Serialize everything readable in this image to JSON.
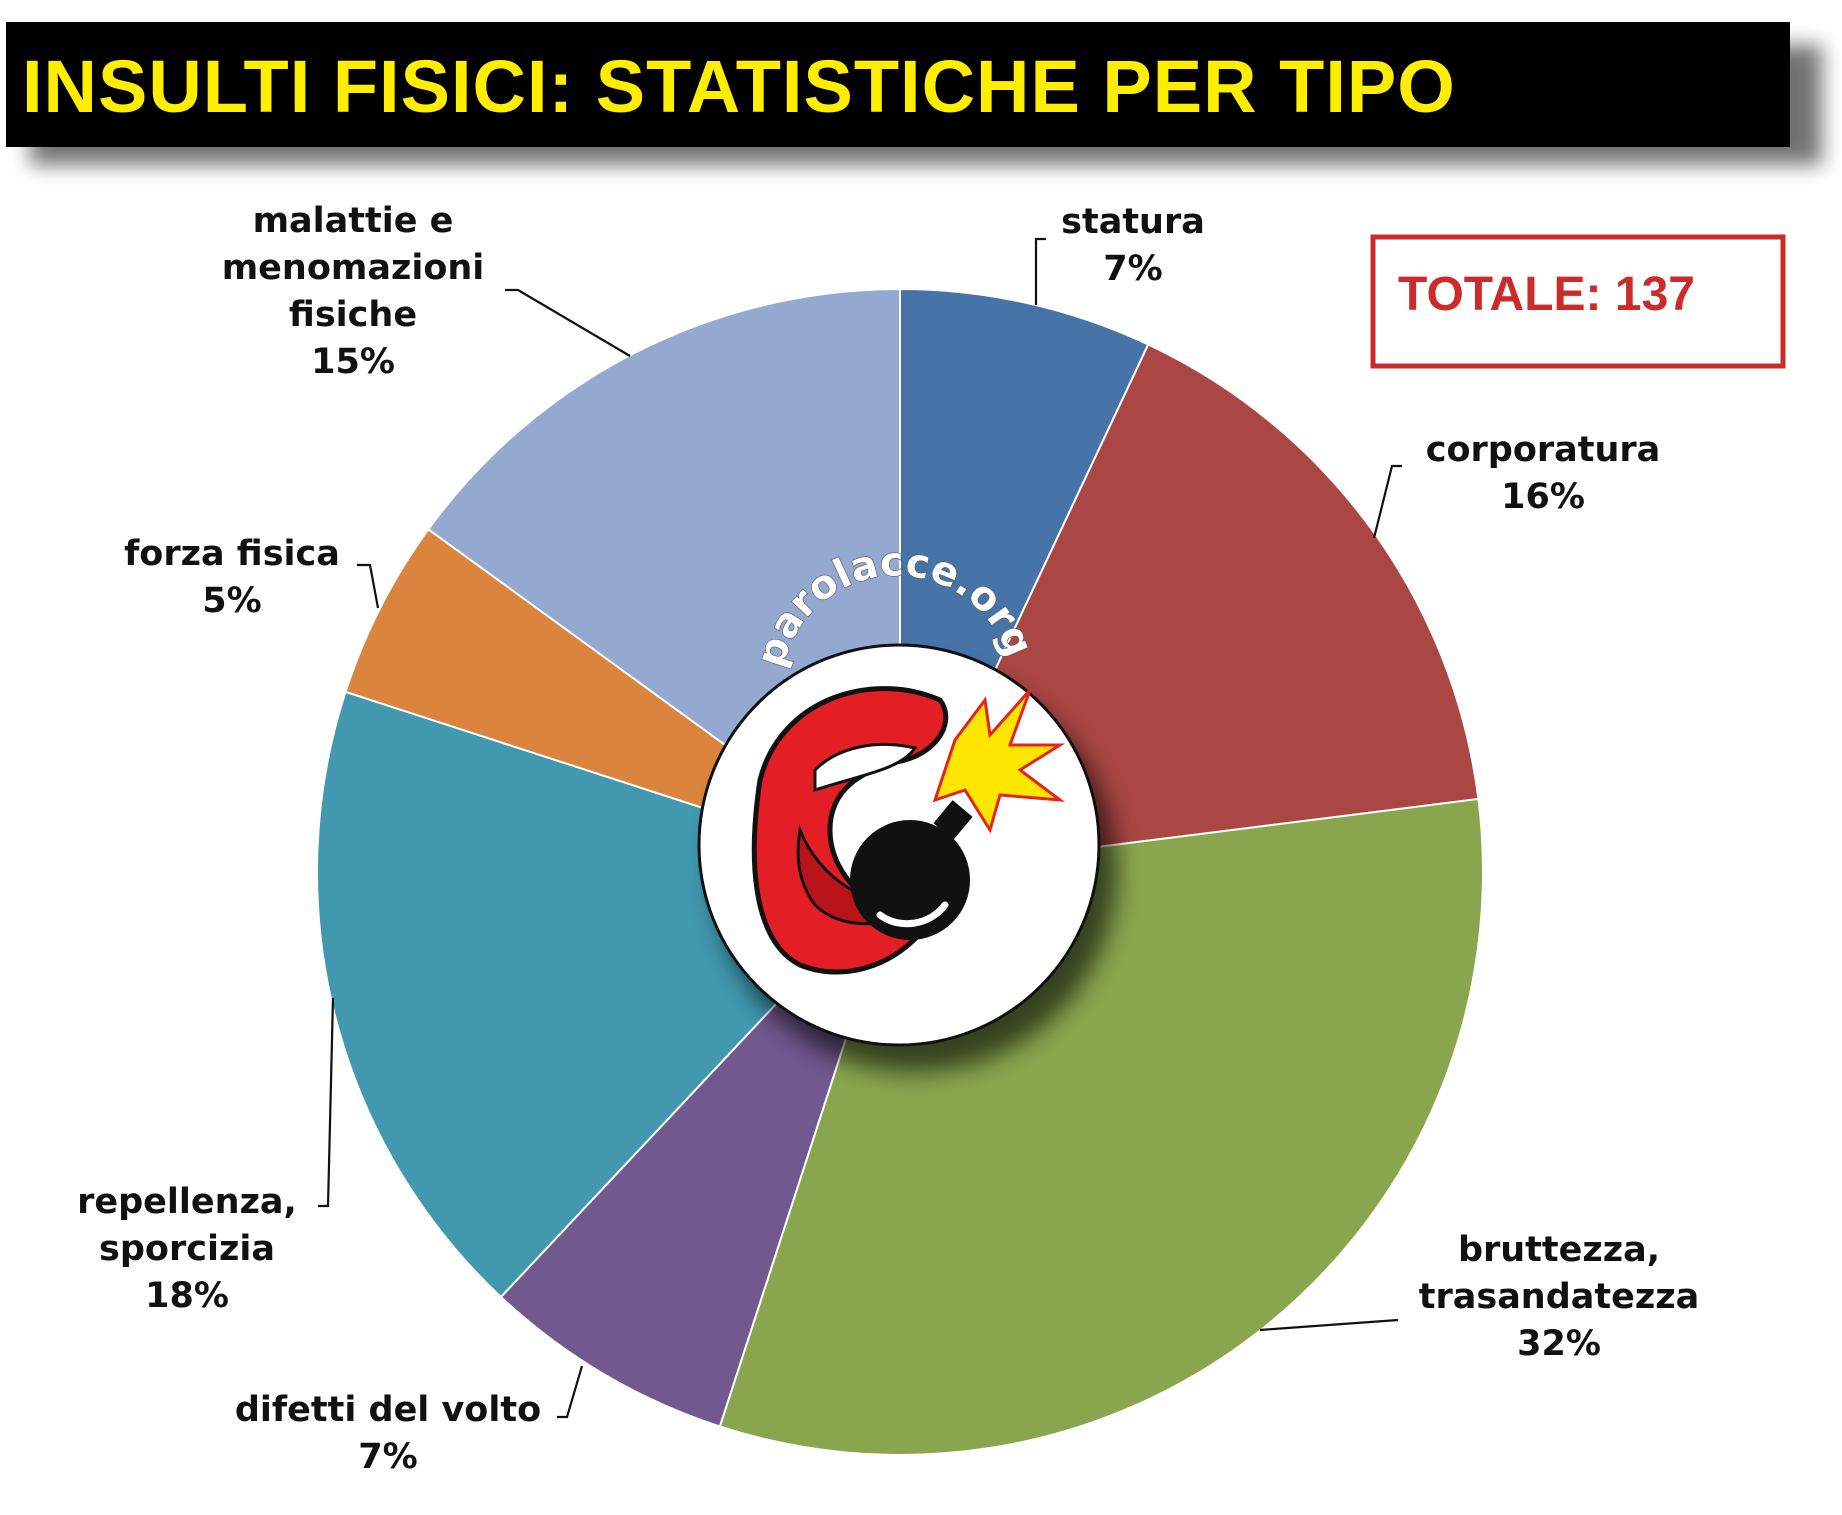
{
  "chart_data": {
    "type": "pie",
    "title": "INSULTI FISICI: STATISTICHE PER TIPO",
    "total_label": "TOTALE: 137",
    "slices": [
      {
        "label": [
          "statura"
        ],
        "value": 7,
        "pct_label": "7%",
        "color": "#4674a9"
      },
      {
        "label": [
          "corporatura"
        ],
        "value": 16,
        "pct_label": "16%",
        "color": "#aa4744"
      },
      {
        "label": [
          "bruttezza,",
          "trasandatezza"
        ],
        "value": 32,
        "pct_label": "32%",
        "color": "#89a54e"
      },
      {
        "label": [
          "difetti del volto"
        ],
        "value": 7,
        "pct_label": "7%",
        "color": "#71588f"
      },
      {
        "label": [
          "repellenza,",
          "sporcizia"
        ],
        "value": 18,
        "pct_label": "18%",
        "color": "#4198af"
      },
      {
        "label": [
          "forza fisica"
        ],
        "value": 5,
        "pct_label": "5%",
        "color": "#db843d"
      },
      {
        "label": [
          "malattie e",
          "menomazioni",
          "fisiche"
        ],
        "value": 15,
        "pct_label": "15%",
        "color": "#93a9cf"
      }
    ],
    "title_color": "#ffee00",
    "title_background": "#000000",
    "total_color": "#cc2b2b"
  },
  "logo": {
    "text": "parolacce.org",
    "icon": "mouth-bomb-icon"
  }
}
